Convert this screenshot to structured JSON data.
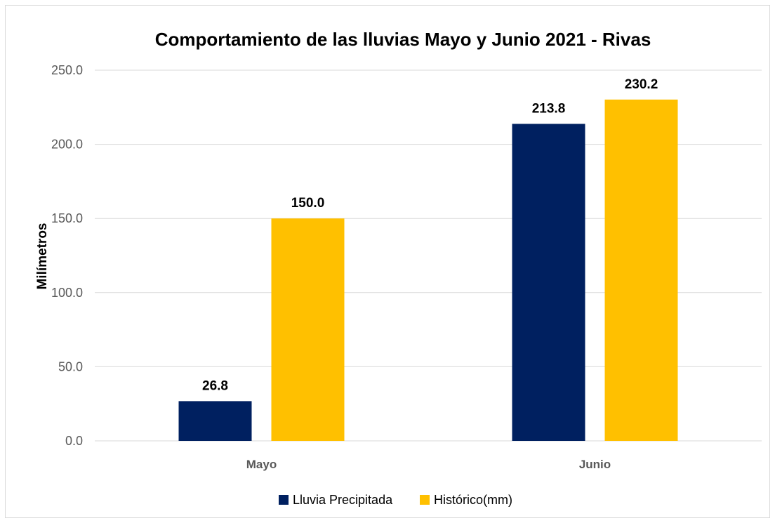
{
  "chart_data": {
    "type": "bar",
    "title": "Comportamiento de las lluvias Mayo y Junio 2021 - Rivas",
    "xlabel": "",
    "ylabel": "Milímetros",
    "categories": [
      "Mayo",
      "Junio"
    ],
    "series": [
      {
        "name": "Lluvia Precipitada",
        "values": [
          26.8,
          213.8
        ],
        "color": "#002060"
      },
      {
        "name": "Histórico(mm)",
        "values": [
          150.0,
          230.2
        ],
        "color": "#ffc000"
      }
    ],
    "ylim": [
      0,
      250
    ],
    "yticks": [
      "0.0",
      "50.0",
      "100.0",
      "150.0",
      "200.0",
      "250.0"
    ],
    "data_labels": [
      [
        "26.8",
        "213.8"
      ],
      [
        "150.0",
        "230.2"
      ]
    ],
    "grid": true,
    "legend_position": "bottom"
  }
}
